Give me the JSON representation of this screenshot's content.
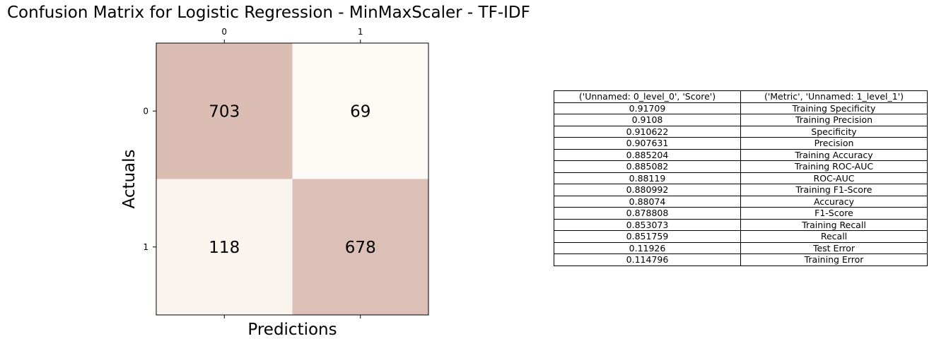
{
  "title": "Confusion Matrix for Logistic Regression - MinMaxScaler - TF-IDF",
  "chart_data": [
    {
      "type": "heatmap",
      "xlabel": "Predictions",
      "ylabel": "Actuals",
      "x_categories": [
        "0",
        "1"
      ],
      "y_categories": [
        "0",
        "1"
      ],
      "values": [
        [
          703,
          69
        ],
        [
          118,
          678
        ]
      ],
      "colors": {
        "high": "#dbbdb4",
        "low": "#fdf9f4"
      }
    },
    {
      "type": "table",
      "columns": [
        "('Unnamed: 0_level_0', 'Score')",
        "('Metric', 'Unnamed: 1_level_1')"
      ],
      "rows": [
        [
          "0.91709",
          "Training Specificity"
        ],
        [
          "0.9108",
          "Training Precision"
        ],
        [
          "0.910622",
          "Specificity"
        ],
        [
          "0.907631",
          "Precision"
        ],
        [
          "0.885204",
          "Training Accuracy"
        ],
        [
          "0.885082",
          "Training ROC-AUC"
        ],
        [
          "0.88119",
          "ROC-AUC"
        ],
        [
          "0.880992",
          "Training F1-Score"
        ],
        [
          "0.88074",
          "Accuracy"
        ],
        [
          "0.878808",
          "F1-Score"
        ],
        [
          "0.853073",
          "Training Recall"
        ],
        [
          "0.851759",
          "Recall"
        ],
        [
          "0.11926",
          "Test Error"
        ],
        [
          "0.114796",
          "Training Error"
        ]
      ]
    }
  ]
}
